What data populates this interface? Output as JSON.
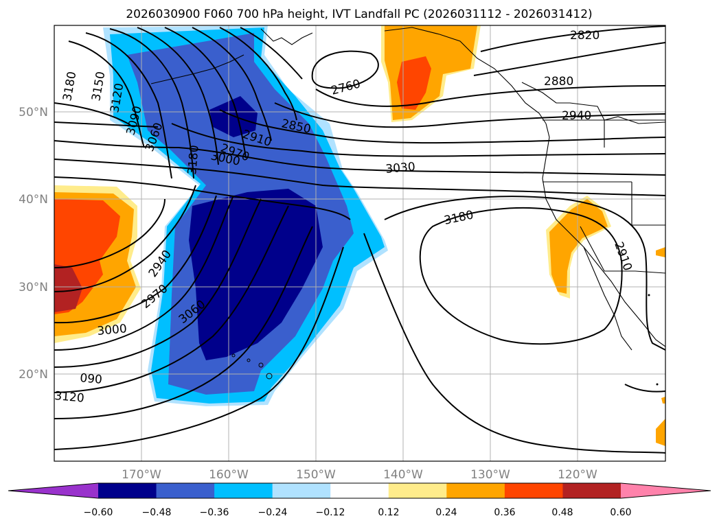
{
  "title": "2026030900 F060 700 hPa height, IVT Landfall PC (2026031112 - 2026031412)",
  "axes": {
    "lon_labels": [
      "170°W",
      "160°W",
      "150°W",
      "140°W",
      "130°W",
      "120°W"
    ],
    "lat_labels": [
      "50°N",
      "40°N",
      "30°N",
      "20°N"
    ]
  },
  "colorbar": {
    "ticks": [
      "−0.60",
      "−0.48",
      "−0.36",
      "−0.24",
      "−0.12",
      "0.12",
      "0.24",
      "0.36",
      "0.48",
      "0.60"
    ],
    "colors": [
      "#9932cc",
      "#00008b",
      "#3a5fcd",
      "#00bfff",
      "#b0e2ff",
      "#ffffff",
      "#ffec8b",
      "#ffa500",
      "#ff4500",
      "#b22222",
      "#ff82ab"
    ]
  },
  "contour_labels": [
    "2820",
    "2880",
    "2940",
    "2760",
    "2850",
    "2910",
    "2970",
    "3000",
    "3030",
    "3060",
    "3090",
    "3120",
    "3150",
    "3180",
    "3180",
    "3180",
    "2910",
    "2940",
    "2970",
    "3000",
    "3060",
    "090",
    "3120"
  ],
  "colors": {
    "neg_strong": "#00008b",
    "neg_mid": "#3a5fcd",
    "neg_weak": "#00bfff",
    "neg_faint": "#b0e2ff",
    "pos_faint": "#ffec8b",
    "pos_weak": "#ffa500",
    "pos_mid": "#ff4500",
    "pos_strong": "#b22222"
  }
}
